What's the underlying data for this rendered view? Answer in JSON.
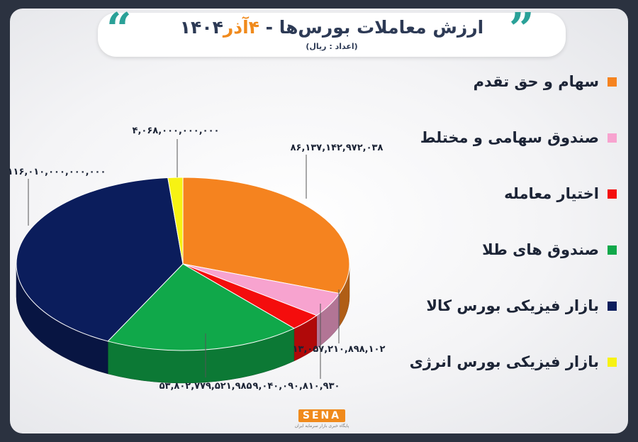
{
  "header": {
    "title_main": "ارزش معاملات بورس‌ها - ",
    "title_date": "۴آذر",
    "title_year": "۱۴۰۴",
    "subtitle": "(اعداد : ریال)"
  },
  "logo": {
    "brand": "SENA",
    "tagline": "پایگاه خبری بازار سرمایه ایران"
  },
  "colors": {
    "accent": "#f08a1c",
    "quote": "#2aa198",
    "title": "#2d3a55"
  },
  "chart_data": {
    "type": "pie",
    "title": "ارزش معاملات بورس‌ها - ۴آذر۱۴۰۴",
    "unit": "(اعداد : ریال)",
    "legend_position": "right",
    "slices": [
      {
        "name": "سهام و حق تقدم",
        "value": 86137142972038,
        "label": "۸۶,۱۳۷,۱۴۲,۹۷۲,۰۳۸",
        "color": "#f5831f"
      },
      {
        "name": "صندوق سهامی و مختلط",
        "value": 13057210898102,
        "label": "۱۳,۰۵۷,۲۱۰,۸۹۸,۱۰۲",
        "color": "#f7a3cf"
      },
      {
        "name": "اختیار معامله",
        "value": 9040090810930,
        "label": "۹,۰۴۰,۰۹۰,۸۱۰,۹۳۰",
        "color": "#f40d0d"
      },
      {
        "name": "صندوق های طلا",
        "value": 53802779521985,
        "label": "۵۳,۸۰۲,۷۷۹,۵۲۱,۹۸۵",
        "color": "#10a84a"
      },
      {
        "name": "بازار فیزیکی بورس کالا",
        "value": 116010000000000,
        "label": "۱۱۶,۰۱۰,۰۰۰,۰۰۰,۰۰۰",
        "color": "#0b1d5c"
      },
      {
        "name": "بازار فیزیکی بورس انرژی",
        "value": 4068000000000,
        "label": "۴,۰۶۸,۰۰۰,۰۰۰,۰۰۰",
        "color": "#f7f213"
      }
    ]
  }
}
